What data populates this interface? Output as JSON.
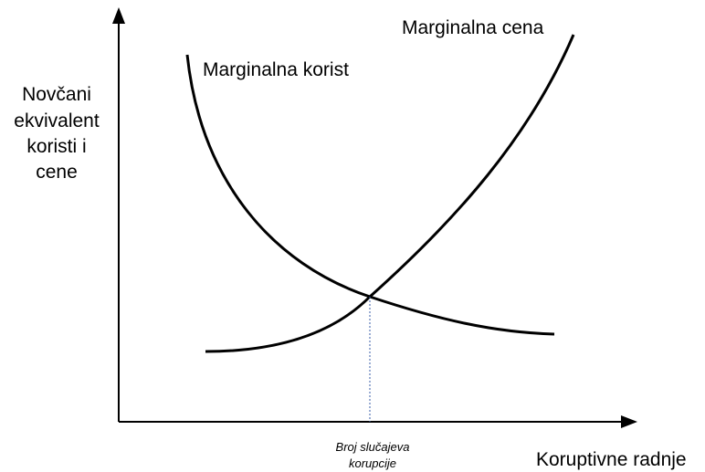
{
  "diagram": {
    "y_axis_label": [
      "Novčani",
      "ekvivalent",
      "koristi i",
      "cene"
    ],
    "x_axis_label": "Koruptivne radnje",
    "curve_cost_label": "Marginalna cena",
    "curve_benefit_label": "Marginalna korist",
    "equilibrium_label": [
      "Broj slučajeva",
      "korupcije"
    ]
  }
}
